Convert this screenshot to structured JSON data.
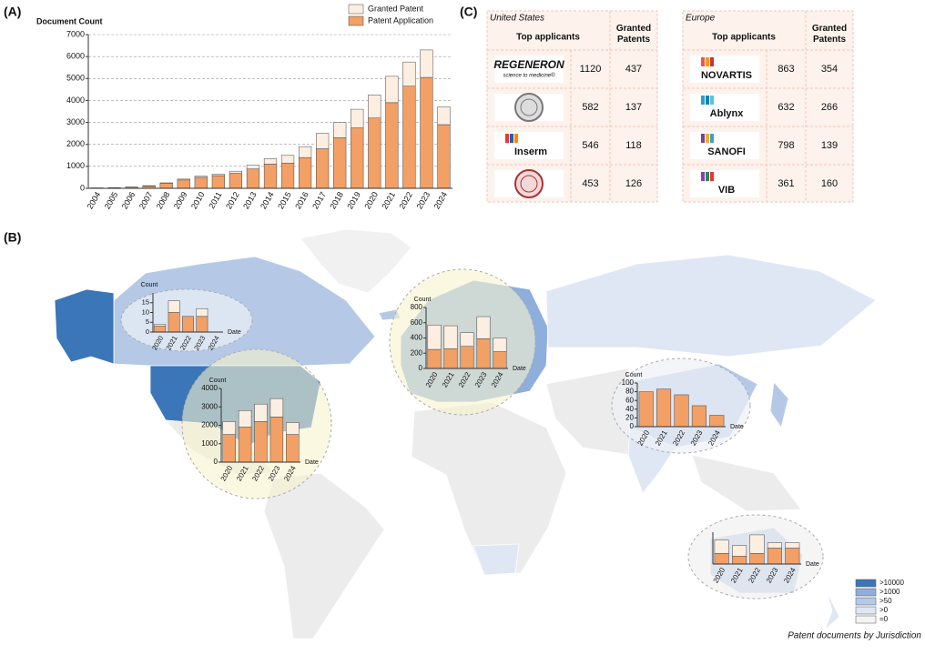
{
  "panel_labels": [
    "(A)",
    "(B)",
    "(C)"
  ],
  "chart_data": [
    {
      "type": "bar",
      "stacked": true,
      "y_label": "Document Count",
      "categories": [
        "2004",
        "2005",
        "2006",
        "2007",
        "2008",
        "2009",
        "2010",
        "2011",
        "2012",
        "2013",
        "2014",
        "2015",
        "2016",
        "2017",
        "2018",
        "2019",
        "2020",
        "2021",
        "2022",
        "2023",
        "2024"
      ],
      "series": [
        {
          "name": "Patent Application",
          "color": "#f2a066",
          "values": [
            15,
            25,
            50,
            100,
            220,
            380,
            500,
            580,
            680,
            880,
            1100,
            1150,
            1400,
            1800,
            2300,
            2750,
            3200,
            3900,
            4650,
            5050,
            2900
          ]
        },
        {
          "name": "Granted Patent",
          "color": "#fdeee2",
          "values": [
            5,
            5,
            10,
            20,
            30,
            40,
            50,
            60,
            100,
            170,
            250,
            350,
            500,
            700,
            700,
            850,
            1050,
            1200,
            1100,
            1250,
            800
          ]
        }
      ],
      "ylim": [
        0,
        7000
      ],
      "yticks": [
        0,
        1000,
        2000,
        3000,
        4000,
        5000,
        6000,
        7000
      ],
      "grid": true,
      "legend": "upper right"
    },
    {
      "type": "bar",
      "stacked": true,
      "y_label": "Count",
      "x_label": "Date",
      "categories": [
        "2020",
        "2021",
        "2022",
        "2023",
        "2024"
      ],
      "series": [
        {
          "color": "#f2a066",
          "values": [
            3,
            10,
            8,
            8,
            0
          ]
        },
        {
          "color": "#fdeee2",
          "values": [
            1,
            6,
            0,
            4,
            0
          ]
        }
      ],
      "ylim": [
        0,
        20
      ],
      "yticks": [
        0,
        5,
        10,
        15
      ]
    },
    {
      "type": "bar",
      "stacked": true,
      "y_label": "Count",
      "x_label": "Date",
      "categories": [
        "2020",
        "2021",
        "2022",
        "2023",
        "2024"
      ],
      "series": [
        {
          "color": "#f2a066",
          "values": [
            1500,
            1900,
            2200,
            2450,
            1500
          ]
        },
        {
          "color": "#fdeee2",
          "values": [
            700,
            900,
            950,
            1000,
            650
          ]
        }
      ],
      "ylim": [
        0,
        4000
      ],
      "yticks": [
        0,
        1000,
        2000,
        3000,
        4000
      ]
    },
    {
      "type": "bar",
      "stacked": true,
      "y_label": "Count",
      "x_label": "Date",
      "categories": [
        "2020",
        "2021",
        "2022",
        "2023",
        "2024"
      ],
      "series": [
        {
          "color": "#f2a066",
          "values": [
            250,
            260,
            290,
            390,
            220
          ]
        },
        {
          "color": "#fdeee2",
          "values": [
            320,
            300,
            180,
            290,
            180
          ]
        }
      ],
      "ylim": [
        0,
        800
      ],
      "yticks": [
        0,
        200,
        400,
        600,
        800
      ]
    },
    {
      "type": "bar",
      "stacked": true,
      "y_label": "Count",
      "x_label": "Date",
      "categories": [
        "2020",
        "2021",
        "2022",
        "2023",
        "2024"
      ],
      "series": [
        {
          "color": "#f2a066",
          "values": [
            80,
            86,
            73,
            48,
            26
          ]
        }
      ],
      "ylim": [
        0,
        100
      ],
      "yticks": [
        0,
        20,
        40,
        60,
        80,
        100
      ]
    },
    {
      "type": "bar",
      "stacked": true,
      "x_label": "Date",
      "categories": [
        "2020",
        "2021",
        "2022",
        "2023",
        "2024"
      ],
      "series": [
        {
          "color": "#f2a066",
          "values": [
            4,
            3,
            4,
            6,
            6
          ]
        },
        {
          "color": "#fdeee2",
          "values": [
            5,
            4,
            7,
            2,
            2
          ]
        }
      ],
      "ylim": [
        0,
        12
      ]
    }
  ],
  "tables": [
    {
      "region": "United States",
      "columns": [
        "Top applicants",
        "Granted Patents"
      ],
      "rows": [
        {
          "logo": "REGENERON",
          "tagline": "science to medicine®",
          "count": 1120,
          "granted": 437
        },
        {
          "count": 582,
          "granted": 137
        },
        {
          "logo": "Inserm",
          "count": 546,
          "granted": 118
        },
        {
          "count": 453,
          "granted": 126
        }
      ]
    },
    {
      "region": "Europe",
      "columns": [
        "Top applicants",
        "Granted Patents"
      ],
      "rows": [
        {
          "logo": "NOVARTIS",
          "count": 863,
          "granted": 354
        },
        {
          "logo": "Ablynx",
          "count": 632,
          "granted": 266
        },
        {
          "logo": "SANOFI",
          "count": 798,
          "granted": 139
        },
        {
          "logo": "VIB",
          "count": 361,
          "granted": 160
        }
      ]
    }
  ],
  "map": {
    "legend": [
      {
        "label": ">10000",
        "color": "#3b76b9"
      },
      {
        "label": ">1000",
        "color": "#8eaedb"
      },
      {
        "label": ">50",
        "color": "#b5c9e7"
      },
      {
        "label": ">0",
        "color": "#dfe7f4"
      },
      {
        "label": "=0",
        "color": "#f4f4f4"
      }
    ],
    "caption": "Patent documents by Jurisdiction"
  }
}
